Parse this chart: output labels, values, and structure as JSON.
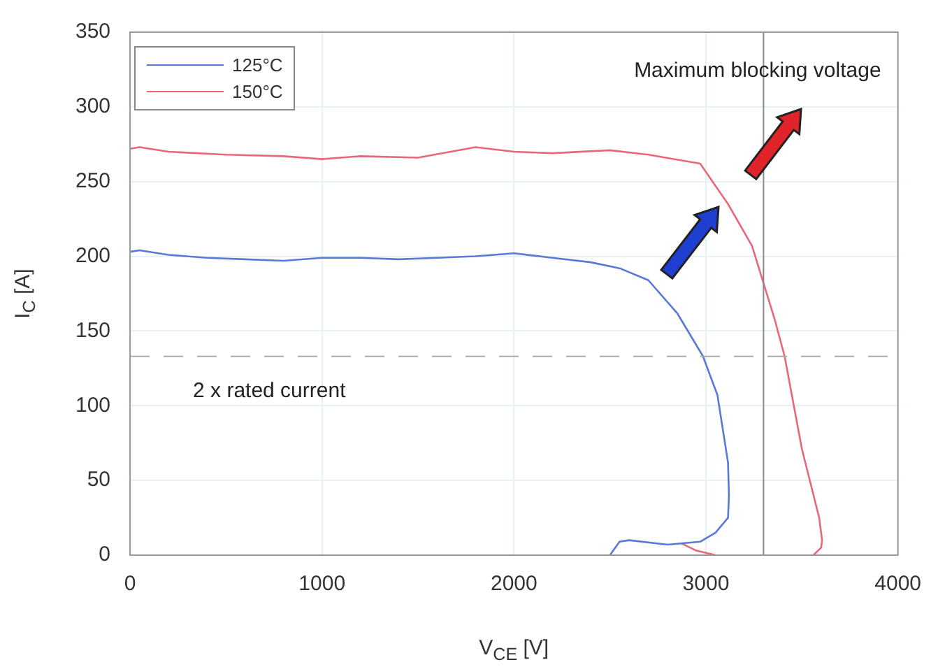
{
  "chart_data": {
    "type": "line",
    "xlabel": "V$_{CE}$ [V]",
    "ylabel": "I$_{C}$ [A]",
    "xlim": [
      0,
      4000
    ],
    "xticks": [
      0,
      1000,
      2000,
      3000,
      4000
    ],
    "ylim": [
      0,
      350
    ],
    "yticks": [
      0,
      50,
      100,
      150,
      200,
      250,
      300,
      350
    ],
    "grid": true,
    "legend": "top left",
    "marker": "none",
    "line_style": "solid",
    "series": [
      {
        "name": "125°C",
        "color": "#5a78d8",
        "x": [
          0,
          50,
          200,
          400,
          600,
          800,
          1000,
          1200,
          1400,
          1600,
          1800,
          2000,
          2200,
          2400,
          2550,
          2700,
          2850,
          2985,
          3060,
          3115,
          3120,
          3115,
          3050,
          2970,
          2800,
          2600,
          2550,
          2500
        ],
        "values": [
          203,
          204,
          201,
          199,
          198,
          197,
          199,
          199,
          198,
          199,
          200,
          202,
          199,
          196,
          192,
          184,
          162,
          133,
          107,
          62,
          40,
          25,
          15,
          9,
          7,
          10,
          9,
          0
        ]
      },
      {
        "name": "150°C",
        "color": "#e8687a",
        "x": [
          0,
          50,
          200,
          500,
          800,
          1000,
          1200,
          1500,
          1800,
          2000,
          2200,
          2500,
          2700,
          2970,
          3115,
          3240,
          3360,
          3410,
          3500,
          3590,
          3605,
          3600,
          3560,
          3200,
          2870,
          2950,
          3050
        ],
        "values": [
          272,
          273,
          270,
          268,
          267,
          265,
          267,
          266,
          273,
          270,
          269,
          271,
          268,
          262,
          235,
          207,
          157,
          133,
          71,
          25,
          10,
          5,
          0,
          null,
          8,
          3,
          0
        ]
      }
    ],
    "ref_lines": [
      {
        "axis": "x",
        "value": 3300,
        "label": "Maximum blocking voltage",
        "color": "#888888",
        "line_style": "solid"
      },
      {
        "axis": "y",
        "value": 133,
        "label": "2 x rated current",
        "color": "#aaaaaa",
        "line_style": "dashed"
      }
    ]
  }
}
